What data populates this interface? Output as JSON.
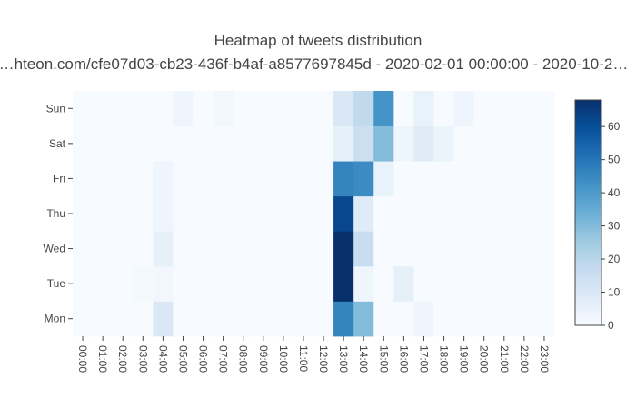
{
  "chart_data": {
    "type": "heatmap",
    "title": "Heatmap of tweets distribution",
    "subtitle": "…hteon.com/cfe07d03-cb23-436f-b4af-a8577697845d - 2020-02-01 00:00:00 - 2020-10-2…",
    "x": [
      "00:00",
      "01:00",
      "02:00",
      "03:00",
      "04:00",
      "05:00",
      "06:00",
      "07:00",
      "08:00",
      "09:00",
      "10:00",
      "11:00",
      "12:00",
      "13:00",
      "14:00",
      "15:00",
      "16:00",
      "17:00",
      "18:00",
      "19:00",
      "20:00",
      "21:00",
      "22:00",
      "23:00"
    ],
    "y": [
      "Mon",
      "Tue",
      "Wed",
      "Thu",
      "Fri",
      "Sat",
      "Sun"
    ],
    "z": [
      [
        0,
        0,
        0,
        0,
        10,
        0,
        0,
        0,
        0,
        0,
        0,
        0,
        0,
        46,
        30,
        0,
        0,
        3,
        0,
        0,
        0,
        0,
        0,
        0
      ],
      [
        0,
        0,
        0,
        1,
        2,
        0,
        0,
        0,
        0,
        0,
        0,
        0,
        0,
        68,
        3,
        0,
        6,
        0,
        0,
        0,
        0,
        0,
        0,
        0
      ],
      [
        0,
        0,
        0,
        0,
        6,
        0,
        0,
        0,
        0,
        0,
        0,
        0,
        0,
        68,
        16,
        0,
        0,
        0,
        0,
        0,
        0,
        0,
        0,
        0
      ],
      [
        0,
        0,
        0,
        0,
        3,
        0,
        0,
        0,
        0,
        0,
        0,
        0,
        0,
        62,
        8,
        0,
        0,
        0,
        0,
        0,
        0,
        0,
        0,
        0
      ],
      [
        0,
        0,
        0,
        0,
        3,
        0,
        0,
        0,
        0,
        0,
        0,
        0,
        0,
        46,
        44,
        5,
        0,
        0,
        0,
        0,
        0,
        0,
        0,
        0
      ],
      [
        0,
        0,
        0,
        0,
        0,
        0,
        0,
        0,
        0,
        0,
        0,
        0,
        0,
        6,
        15,
        30,
        3,
        8,
        4,
        0,
        0,
        0,
        0,
        0
      ],
      [
        0,
        0,
        0,
        0,
        0,
        3,
        0,
        2,
        0,
        0,
        0,
        0,
        0,
        10,
        18,
        42,
        0,
        5,
        0,
        3,
        0,
        0,
        0,
        0
      ]
    ],
    "zlim": [
      0,
      68
    ],
    "colorbar_ticks": [
      0,
      10,
      20,
      30,
      40,
      50,
      60
    ],
    "colorscale": [
      "#f7fbff",
      "#deebf7",
      "#c6dbef",
      "#9ecae1",
      "#6baed6",
      "#4292c6",
      "#2171b5",
      "#08519c",
      "#08306b"
    ],
    "legend": "colorbar-right"
  }
}
